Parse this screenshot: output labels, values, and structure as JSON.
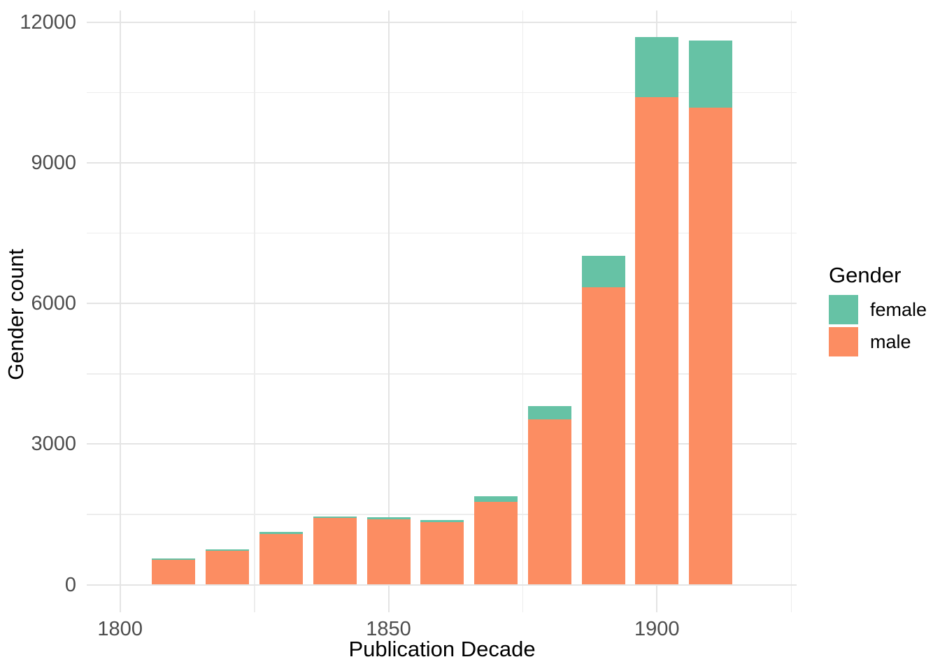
{
  "chart_data": {
    "type": "bar",
    "stacked": true,
    "orientation": "vertical",
    "title": "",
    "xlabel": "Publication Decade",
    "ylabel": "Gender count",
    "categories": [
      1810,
      1820,
      1830,
      1840,
      1850,
      1860,
      1870,
      1880,
      1890,
      1900,
      1910
    ],
    "series": [
      {
        "name": "male",
        "color": "#FC8D62",
        "stack_position": "bottom",
        "values": [
          530,
          720,
          1080,
          1420,
          1390,
          1330,
          1770,
          3530,
          6340,
          10400,
          10170
        ]
      },
      {
        "name": "female",
        "color": "#66C2A5",
        "stack_position": "top",
        "values": [
          30,
          40,
          40,
          40,
          50,
          50,
          115,
          280,
          680,
          1280,
          1440
        ]
      }
    ],
    "stack_totals": [
      560,
      760,
      1120,
      1460,
      1440,
      1380,
      1885,
      3810,
      7020,
      11680,
      11610
    ],
    "x_tick_labels": [
      "1800",
      "1850",
      "1900"
    ],
    "x_tick_values": [
      1800,
      1850,
      1900
    ],
    "x_minor_values": [
      1825,
      1875,
      1925
    ],
    "y_tick_labels": [
      "0",
      "3000",
      "6000",
      "9000",
      "12000"
    ],
    "y_tick_values": [
      0,
      3000,
      6000,
      9000,
      12000
    ],
    "y_minor_values": [
      1500,
      4500,
      7500,
      10500
    ],
    "ylim": [
      0,
      12265
    ],
    "xlim": [
      1794,
      1926
    ],
    "grid": "major-and-minor",
    "gridline_major_color": "#E4E4E4",
    "gridline_minor_color": "#EDEDED",
    "axis_text_color": "#4D4D4D",
    "title_text_color": "#000000",
    "background": "#FFFFFF",
    "legend_position": "right"
  },
  "legend": {
    "title": "Gender",
    "items": [
      {
        "label": "female",
        "color": "#66C2A5"
      },
      {
        "label": "male",
        "color": "#FC8D62"
      }
    ]
  }
}
